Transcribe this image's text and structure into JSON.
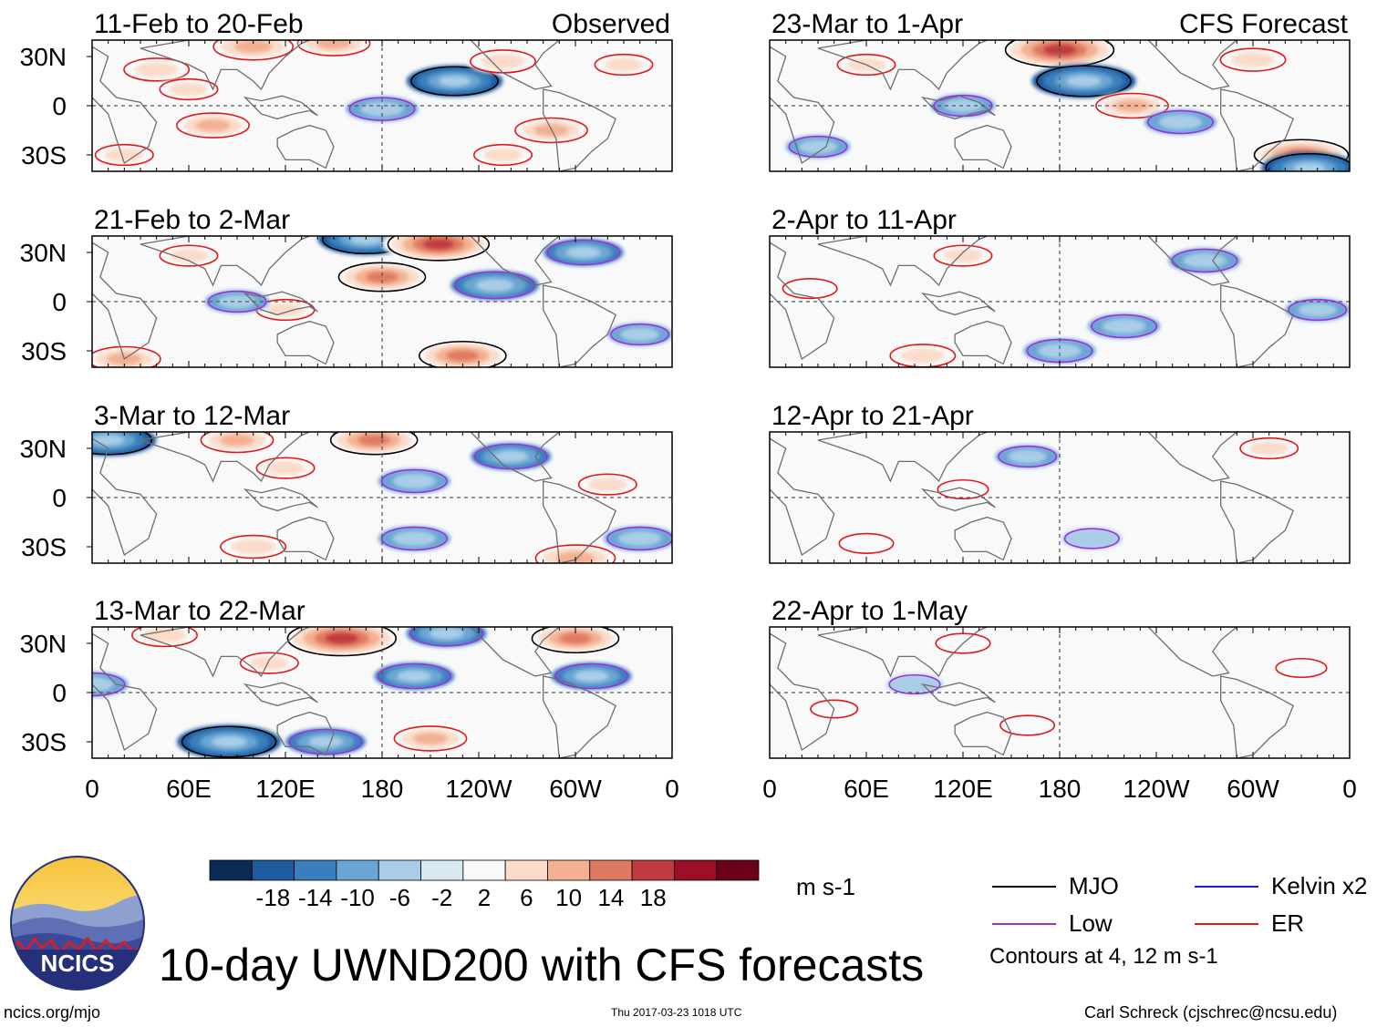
{
  "colors": {
    "mjo": "#000000",
    "kelvin": "#1a1adc",
    "low": "#a02ee0",
    "er": "#e01818",
    "land": "#6e6e6e",
    "scale": [
      "#0b2a55",
      "#1e5a9e",
      "#3a7fbd",
      "#6aa6d3",
      "#a9cde6",
      "#d9e9f4",
      "#f9f9f9",
      "#fbdccb",
      "#f3b092",
      "#df7a62",
      "#c03b3f",
      "#9b1028",
      "#6b0019"
    ]
  },
  "header_labels": {
    "observed": "Observed",
    "forecast": "CFS Forecast"
  },
  "lat_labels": [
    "30N",
    "0",
    "30S"
  ],
  "lon_labels": [
    "0",
    "60E",
    "120E",
    "180",
    "120W",
    "60W",
    "0"
  ],
  "colorbar": {
    "ticks": [
      "-18",
      "-14",
      "-10",
      "-6",
      "-2",
      "2",
      "6",
      "10",
      "14",
      "18"
    ],
    "units": "m s-1"
  },
  "legend": [
    {
      "label": "MJO",
      "color_key": "mjo"
    },
    {
      "label": "Kelvin x2",
      "color_key": "kelvin"
    },
    {
      "label": "Low",
      "color_key": "low"
    },
    {
      "label": "ER",
      "color_key": "er"
    }
  ],
  "contour_note": "Contours at 4, 12 m s-1",
  "figure_title": "10-day UWND200 with CFS forecasts",
  "logo_text": "NCICS",
  "footer": {
    "site": "ncics.org/mjo",
    "timestamp": "Thu 2017-03-23 1018 UTC",
    "author": "Carl Schreck (cjschrec@ncsu.edu)"
  },
  "chart_data": {
    "type": "heatmap",
    "title": "10-day UWND200 with CFS forecasts",
    "variable": "200-hPa zonal wind anomaly",
    "units": "m s-1",
    "levels": [
      -18,
      -14,
      -10,
      -6,
      -2,
      2,
      6,
      10,
      14,
      18
    ],
    "contour_levels": [
      4,
      12
    ],
    "xlim": [
      0,
      360
    ],
    "ylim": [
      -40,
      40
    ],
    "x_ticks": [
      "0",
      "60E",
      "120E",
      "180",
      "120W",
      "60W",
      "0"
    ],
    "y_ticks": [
      "30N",
      "0",
      "30S"
    ],
    "panels": [
      {
        "period": "11-Feb to 20-Feb",
        "source": "Observed",
        "column": "left",
        "row": 0,
        "features": [
          {
            "lon": 40,
            "lat": 22,
            "u": 8
          },
          {
            "lon": 60,
            "lat": 10,
            "u": 6
          },
          {
            "lon": 75,
            "lat": -12,
            "u": 10
          },
          {
            "lon": 180,
            "lat": -2,
            "u": -8
          },
          {
            "lon": 225,
            "lat": 15,
            "u": -14
          },
          {
            "lon": 255,
            "lat": 27,
            "u": 8
          },
          {
            "lon": 285,
            "lat": -15,
            "u": 10
          },
          {
            "lon": 150,
            "lat": 38,
            "u": 10
          },
          {
            "lon": 100,
            "lat": 36,
            "u": 12
          },
          {
            "lon": 330,
            "lat": 25,
            "u": 6
          },
          {
            "lon": 20,
            "lat": -30,
            "u": 6
          },
          {
            "lon": 255,
            "lat": -30,
            "u": 6
          }
        ]
      },
      {
        "period": "21-Feb to 2-Mar",
        "source": "Observed",
        "column": "left",
        "row": 1,
        "features": [
          {
            "lon": 180,
            "lat": 15,
            "u": 14
          },
          {
            "lon": 170,
            "lat": 38,
            "u": -14
          },
          {
            "lon": 215,
            "lat": 35,
            "u": 18
          },
          {
            "lon": 250,
            "lat": 10,
            "u": -12
          },
          {
            "lon": 305,
            "lat": 30,
            "u": -10
          },
          {
            "lon": 60,
            "lat": 28,
            "u": 6
          },
          {
            "lon": 120,
            "lat": -5,
            "u": 6
          },
          {
            "lon": 230,
            "lat": -33,
            "u": 14
          },
          {
            "lon": 20,
            "lat": -35,
            "u": 10
          },
          {
            "lon": 90,
            "lat": 0,
            "u": -6
          },
          {
            "lon": 340,
            "lat": -20,
            "u": -6
          }
        ]
      },
      {
        "period": "3-Mar to 12-Mar",
        "source": "Observed",
        "column": "left",
        "row": 2,
        "features": [
          {
            "lon": 10,
            "lat": 35,
            "u": -14
          },
          {
            "lon": 90,
            "lat": 35,
            "u": 10
          },
          {
            "lon": 175,
            "lat": 35,
            "u": 14
          },
          {
            "lon": 120,
            "lat": 18,
            "u": 6
          },
          {
            "lon": 200,
            "lat": 10,
            "u": -8
          },
          {
            "lon": 260,
            "lat": 25,
            "u": -10
          },
          {
            "lon": 320,
            "lat": 8,
            "u": 6
          },
          {
            "lon": 100,
            "lat": -30,
            "u": 8
          },
          {
            "lon": 200,
            "lat": -25,
            "u": -8
          },
          {
            "lon": 300,
            "lat": -37,
            "u": 12
          },
          {
            "lon": 340,
            "lat": -25,
            "u": -8
          }
        ]
      },
      {
        "period": "13-Mar to 22-Mar",
        "source": "Observed",
        "column": "left",
        "row": 3,
        "features": [
          {
            "lon": 155,
            "lat": 33,
            "u": 20
          },
          {
            "lon": 220,
            "lat": 36,
            "u": -10
          },
          {
            "lon": 300,
            "lat": 33,
            "u": 14
          },
          {
            "lon": 45,
            "lat": 35,
            "u": 8
          },
          {
            "lon": 110,
            "lat": 18,
            "u": 6
          },
          {
            "lon": 200,
            "lat": 10,
            "u": -10
          },
          {
            "lon": 310,
            "lat": 10,
            "u": -10
          },
          {
            "lon": 85,
            "lat": -30,
            "u": -16
          },
          {
            "lon": 145,
            "lat": -30,
            "u": -10
          },
          {
            "lon": 210,
            "lat": -28,
            "u": 10
          },
          {
            "lon": 0,
            "lat": 5,
            "u": -8
          }
        ]
      },
      {
        "period": "23-Mar to 1-Apr",
        "source": "CFS Forecast",
        "column": "right",
        "row": 0,
        "features": [
          {
            "lon": 180,
            "lat": 34,
            "u": 20
          },
          {
            "lon": 195,
            "lat": 15,
            "u": -16
          },
          {
            "lon": 225,
            "lat": 0,
            "u": 10
          },
          {
            "lon": 255,
            "lat": -10,
            "u": -8
          },
          {
            "lon": 330,
            "lat": -30,
            "u": 16
          },
          {
            "lon": 335,
            "lat": -38,
            "u": -14
          },
          {
            "lon": 60,
            "lat": 25,
            "u": 6
          },
          {
            "lon": 120,
            "lat": 0,
            "u": -6
          },
          {
            "lon": 300,
            "lat": 28,
            "u": 8
          },
          {
            "lon": 30,
            "lat": -25,
            "u": -6
          }
        ]
      },
      {
        "period": "2-Apr to 11-Apr",
        "source": "CFS Forecast",
        "column": "right",
        "row": 1,
        "features": [
          {
            "lon": 270,
            "lat": 25,
            "u": -8
          },
          {
            "lon": 120,
            "lat": 28,
            "u": 6
          },
          {
            "lon": 180,
            "lat": -30,
            "u": -8
          },
          {
            "lon": 220,
            "lat": -15,
            "u": -8
          },
          {
            "lon": 95,
            "lat": -33,
            "u": 8
          },
          {
            "lon": 25,
            "lat": 8,
            "u": 5
          },
          {
            "lon": 340,
            "lat": -5,
            "u": -6
          }
        ]
      },
      {
        "period": "12-Apr to 21-Apr",
        "source": "CFS Forecast",
        "column": "right",
        "row": 2,
        "features": [
          {
            "lon": 160,
            "lat": 25,
            "u": -6
          },
          {
            "lon": 310,
            "lat": 30,
            "u": 6
          },
          {
            "lon": 60,
            "lat": -28,
            "u": 5
          },
          {
            "lon": 200,
            "lat": -25,
            "u": -5
          },
          {
            "lon": 120,
            "lat": 5,
            "u": 4
          }
        ]
      },
      {
        "period": "22-Apr to 1-May",
        "source": "CFS Forecast",
        "column": "right",
        "row": 3,
        "features": [
          {
            "lon": 120,
            "lat": 30,
            "u": 5
          },
          {
            "lon": 160,
            "lat": -20,
            "u": 5
          },
          {
            "lon": 90,
            "lat": 5,
            "u": -4
          },
          {
            "lon": 330,
            "lat": 15,
            "u": 4
          },
          {
            "lon": 40,
            "lat": -10,
            "u": 3
          }
        ]
      }
    ]
  }
}
